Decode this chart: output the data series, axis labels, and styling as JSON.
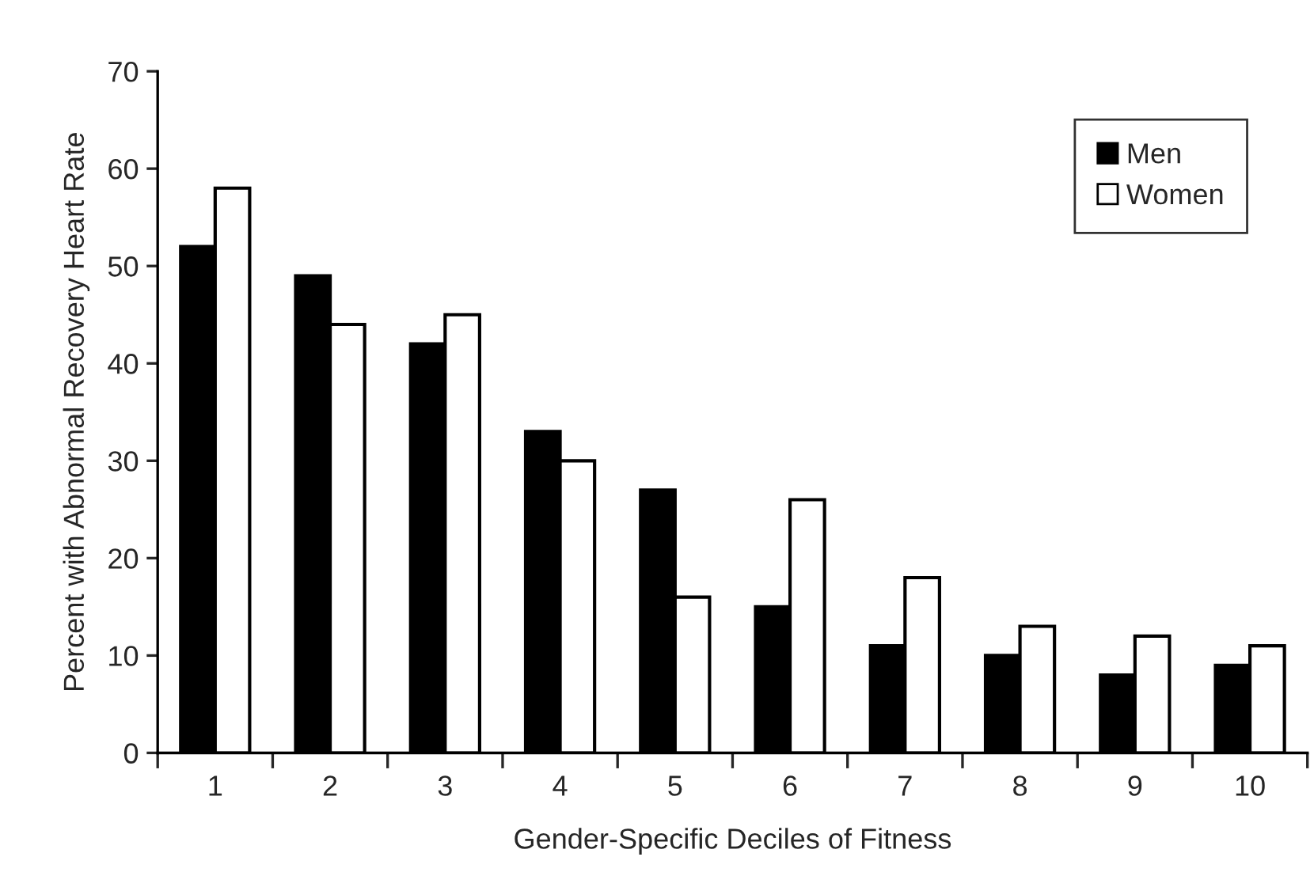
{
  "chart_data": {
    "type": "bar",
    "xlabel": "Gender-Specific Deciles of Fitness",
    "ylabel": "Percent with Abnormal Recovery Heart Rate",
    "categories": [
      "1",
      "2",
      "3",
      "4",
      "5",
      "6",
      "7",
      "8",
      "9",
      "10"
    ],
    "series": [
      {
        "name": "Men",
        "color": "#000000",
        "values": [
          52,
          49,
          42,
          33,
          27,
          15,
          11,
          10,
          8,
          9
        ]
      },
      {
        "name": "Women",
        "color": "#ffffff",
        "values": [
          58,
          44,
          45,
          30,
          16,
          26,
          18,
          13,
          12,
          11
        ]
      }
    ],
    "ylim": [
      0,
      70
    ],
    "yticks": [
      0,
      10,
      20,
      30,
      40,
      50,
      60,
      70
    ],
    "grid": false,
    "legend": "top right"
  }
}
